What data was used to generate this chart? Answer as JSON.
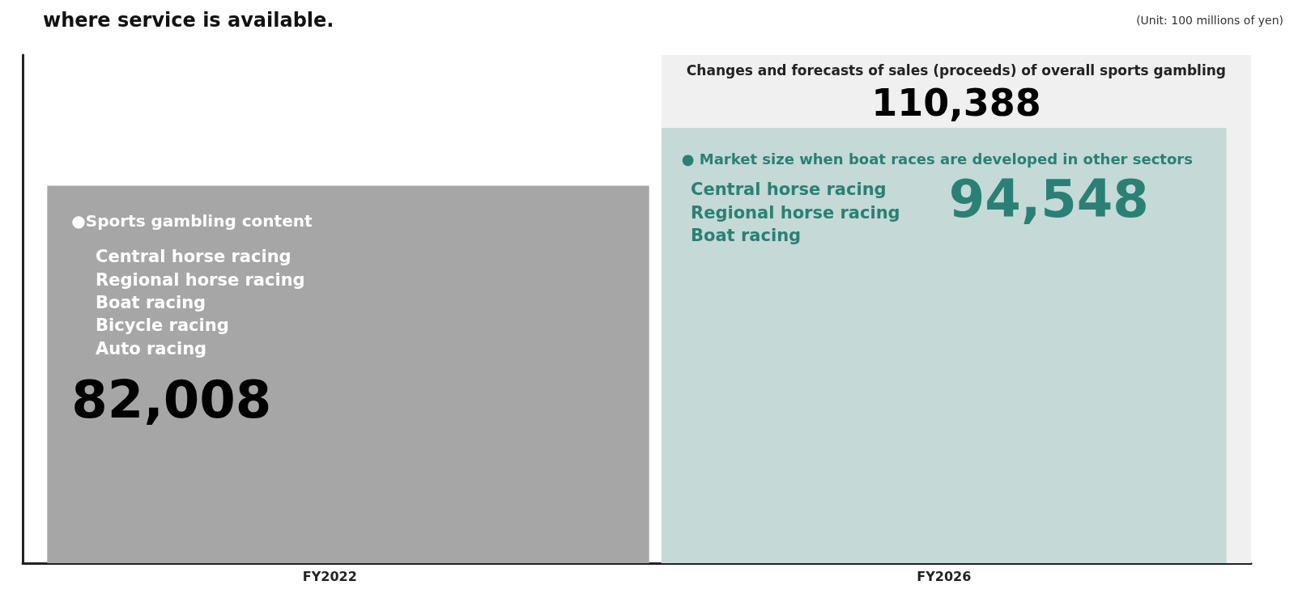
{
  "chart_data": {
    "type": "bar",
    "title": "where service is available.",
    "categories": [
      "FY2022",
      "FY2026"
    ],
    "series": [
      {
        "name": "Changes and forecasts of sales (proceeds) of overall sports gambling",
        "color": "#f0f0f0",
        "values": [
          null,
          110388
        ],
        "value_labels": [
          null,
          "110,388"
        ]
      },
      {
        "name": "●Sports gambling content",
        "color": "#a6a6a6",
        "values": [
          82008,
          null
        ],
        "value_labels": [
          "82,008",
          null
        ]
      },
      {
        "name": "● Market size when boat races are developed in other sectors",
        "color": "#c5d9d7",
        "values": [
          null,
          94548
        ],
        "value_labels": [
          null,
          "94,548"
        ]
      }
    ],
    "legend": false,
    "grid": false,
    "tick_labels": "x",
    "annotations": [
      "(Unit: 100 millions of yen)",
      "Central horse racing\nRegional horse racing\nBoat racing\nBicycle racing\nAuto racing",
      "Central horse racing\nRegional horse racing\nBoat racing"
    ]
  }
}
